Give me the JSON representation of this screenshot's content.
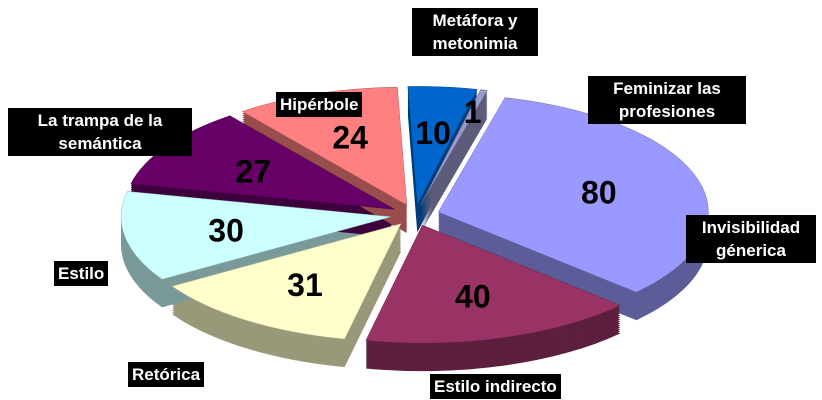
{
  "chart_data": {
    "type": "pie",
    "categories": [
      "Metáfora y metonimia",
      "Feminizar las profesiones",
      "Invisibilidad génerica",
      "Estilo indirecto",
      "Retórica",
      "Estilo",
      "La trampa de la semántica",
      "Hipérbole"
    ],
    "values": [
      10,
      1,
      80,
      40,
      31,
      30,
      27,
      24
    ],
    "colors": [
      "#0066cc",
      "#9999cc",
      "#9999ff",
      "#993366",
      "#ffffcc",
      "#ccffff",
      "#660066",
      "#ff8080"
    ]
  }
}
